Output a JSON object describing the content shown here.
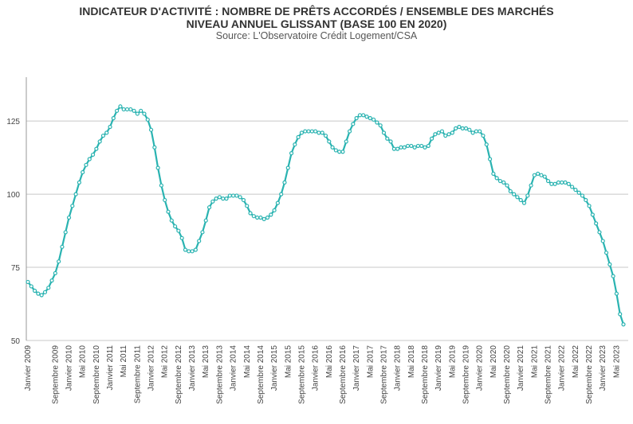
{
  "chart_data": {
    "type": "line",
    "title": "INDICATEUR D'ACTIVITÉ : NOMBRE DE PRÊTS ACCORDÉS / ENSEMBLE DES MARCHÉS",
    "subtitle": "NIVEAU ANNUEL GLISSANT (BASE 100 EN 2020)",
    "source": "Source: L'Observatoire Crédit Logement/CSA",
    "categories": [
      "Janvier 2009",
      null,
      null,
      null,
      null,
      null,
      null,
      null,
      "Septembre 2009",
      null,
      null,
      null,
      "Janvier 2010",
      null,
      null,
      null,
      "Mai 2010",
      null,
      null,
      null,
      "Septembre 2010",
      null,
      null,
      null,
      "Janvier 2011",
      null,
      null,
      null,
      "Mai 2011",
      null,
      null,
      null,
      "Septembre 2011",
      null,
      null,
      null,
      "Janvier 2012",
      null,
      null,
      null,
      "Mai 2012",
      null,
      null,
      null,
      "Septembre 2012",
      null,
      null,
      null,
      "Janvier 2013",
      null,
      null,
      null,
      "Mai 2013",
      null,
      null,
      null,
      "Septembre 2013",
      null,
      null,
      null,
      "Janvier 2014",
      null,
      null,
      null,
      "Mai 2014",
      null,
      null,
      null,
      "Septembre 2014",
      null,
      null,
      null,
      "Janvier 2015",
      null,
      null,
      null,
      "Mai 2015",
      null,
      null,
      null,
      "Septembre 2015",
      null,
      null,
      null,
      "Janvier 2016",
      null,
      null,
      null,
      "Mai 2016",
      null,
      null,
      null,
      "Septembre 2016",
      null,
      null,
      null,
      "Janvier 2017",
      null,
      null,
      null,
      "Mai 2017",
      null,
      null,
      null,
      "Septembre 2017",
      null,
      null,
      null,
      "Janvier 2018",
      null,
      null,
      null,
      "Mai 2018",
      null,
      null,
      null,
      "Septembre 2018",
      null,
      null,
      null,
      "Janvier 2019",
      null,
      null,
      null,
      "Mai 2019",
      null,
      null,
      null,
      "Septembre 2019",
      null,
      null,
      null,
      "Janvier 2020",
      null,
      null,
      null,
      "Mai 2020",
      null,
      null,
      null,
      "Septembre 2020",
      null,
      null,
      null,
      "Janvier 2021",
      null,
      null,
      null,
      "Mai 2021",
      null,
      null,
      null,
      "Septembre 2021",
      null,
      null,
      null,
      "Janvier 2022",
      null,
      null,
      null,
      "Mai 2022",
      null,
      null,
      null,
      "Septembre 2022",
      null,
      null,
      null,
      "Janvier 2023",
      null,
      null,
      null,
      "Mai 2023",
      null,
      null
    ],
    "series": [
      {
        "color": "#2ab3b1",
        "values": [
          70,
          68.5,
          67,
          66,
          65.5,
          66.5,
          68,
          70.5,
          73,
          77,
          82,
          87,
          92,
          96,
          100,
          104,
          107.5,
          110,
          112,
          113.5,
          115.5,
          118,
          120,
          121,
          123,
          126,
          128.5,
          130,
          129,
          129,
          129,
          128.5,
          127.5,
          128.5,
          127.5,
          125.5,
          122,
          116,
          109,
          103,
          98,
          94,
          91,
          89,
          87.5,
          85,
          81,
          80.5,
          80.5,
          81,
          84,
          87,
          91,
          95.5,
          97.5,
          98.5,
          99,
          98.5,
          98.5,
          99.5,
          99.5,
          99.5,
          99,
          98,
          96,
          93.5,
          92.5,
          92,
          92,
          91.5,
          92,
          93,
          94.5,
          97,
          100,
          104,
          109,
          114,
          117,
          119.5,
          121,
          121.5,
          121.5,
          121.5,
          121.5,
          121,
          121,
          120,
          118,
          116,
          115,
          114.5,
          114.5,
          118,
          121.5,
          124,
          126,
          127,
          127,
          126.5,
          126,
          125.5,
          124.5,
          123.5,
          121,
          119,
          118,
          115.5,
          115.5,
          116,
          116,
          116.5,
          116.5,
          116,
          116.5,
          116.5,
          116,
          116.5,
          119,
          120.5,
          121,
          121.5,
          120,
          120.5,
          121,
          122.5,
          123,
          122.5,
          122.5,
          122,
          121,
          121.5,
          121.5,
          120,
          117,
          112,
          107,
          105.5,
          104.5,
          104,
          103,
          101,
          100,
          99,
          98,
          97,
          99.5,
          103,
          106.5,
          107,
          106.5,
          106,
          104.5,
          103.5,
          103.5,
          104,
          104,
          104,
          103.5,
          102.5,
          101.5,
          100.5,
          99.5,
          98,
          96,
          93,
          90,
          87,
          84,
          80,
          76,
          72,
          66,
          59,
          55.5
        ]
      }
    ],
    "ylim": [
      50,
      140
    ],
    "yticks": [
      50,
      75,
      100,
      125
    ],
    "grid": true
  }
}
